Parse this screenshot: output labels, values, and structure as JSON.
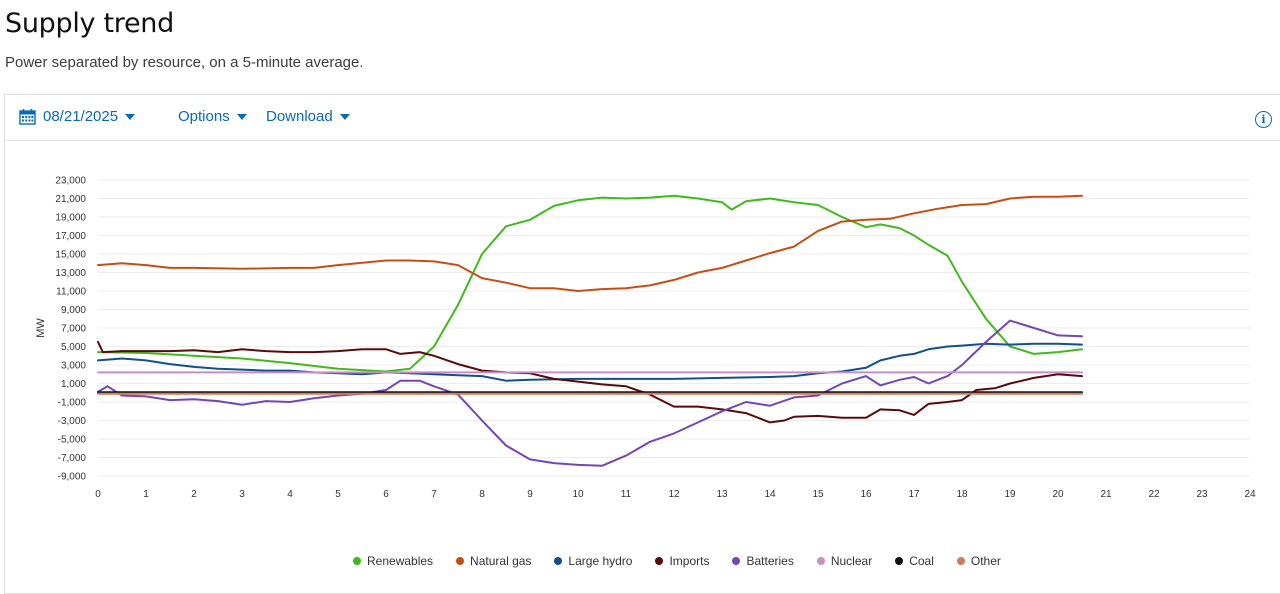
{
  "header": {
    "title": "Supply trend",
    "subtitle": "Power separated by resource, on a 5-minute average."
  },
  "toolbar": {
    "date": "08/21/2025",
    "options_label": "Options",
    "download_label": "Download",
    "info_glyph": "i"
  },
  "colors": {
    "accent": "#0a6bb5",
    "Renewables": "#41b91c",
    "Natural gas": "#c54e14",
    "Large hydro": "#124f8c",
    "Imports": "#5a0a0a",
    "Batteries": "#7247b5",
    "Nuclear": "#c88ec8",
    "Coal": "#111111",
    "Other": "#d17a5c"
  },
  "chart_data": {
    "type": "line",
    "ylabel": "MW",
    "xlabel": "",
    "xlim": [
      0,
      24
    ],
    "ylim": [
      -9000,
      23000
    ],
    "xticks": [
      0,
      1,
      2,
      3,
      4,
      5,
      6,
      7,
      8,
      9,
      10,
      11,
      12,
      13,
      14,
      15,
      16,
      17,
      18,
      19,
      20,
      21,
      22,
      23,
      24
    ],
    "yticks": [
      -9000,
      -7000,
      -5000,
      -3000,
      -1000,
      1000,
      3000,
      5000,
      7000,
      9000,
      11000,
      13000,
      15000,
      17000,
      19000,
      21000,
      23000
    ],
    "grid": "horizontal",
    "legend": "bottom-center",
    "series": [
      {
        "name": "Renewables",
        "points": [
          [
            0,
            4400
          ],
          [
            1,
            4300
          ],
          [
            2,
            4000
          ],
          [
            3,
            3700
          ],
          [
            4,
            3200
          ],
          [
            5,
            2600
          ],
          [
            6,
            2300
          ],
          [
            6.5,
            2600
          ],
          [
            7,
            5000
          ],
          [
            7.5,
            9500
          ],
          [
            8,
            15000
          ],
          [
            8.5,
            18000
          ],
          [
            9,
            18700
          ],
          [
            9.5,
            20200
          ],
          [
            10,
            20800
          ],
          [
            10.5,
            21100
          ],
          [
            11,
            21000
          ],
          [
            11.5,
            21100
          ],
          [
            12,
            21300
          ],
          [
            12.5,
            21000
          ],
          [
            13,
            20600
          ],
          [
            13.2,
            19800
          ],
          [
            13.5,
            20700
          ],
          [
            14,
            21000
          ],
          [
            14.5,
            20600
          ],
          [
            15,
            20300
          ],
          [
            15.5,
            19000
          ],
          [
            16,
            17900
          ],
          [
            16.3,
            18200
          ],
          [
            16.7,
            17800
          ],
          [
            17,
            17000
          ],
          [
            17.3,
            16000
          ],
          [
            17.7,
            14800
          ],
          [
            18,
            12000
          ],
          [
            18.5,
            8000
          ],
          [
            19,
            5000
          ],
          [
            19.5,
            4200
          ],
          [
            20,
            4400
          ],
          [
            20.5,
            4700
          ]
        ]
      },
      {
        "name": "Natural gas",
        "points": [
          [
            0,
            13800
          ],
          [
            0.5,
            14000
          ],
          [
            1,
            13800
          ],
          [
            1.5,
            13500
          ],
          [
            2,
            13500
          ],
          [
            3,
            13400
          ],
          [
            4,
            13500
          ],
          [
            4.5,
            13500
          ],
          [
            5,
            13800
          ],
          [
            6,
            14300
          ],
          [
            6.5,
            14300
          ],
          [
            7,
            14200
          ],
          [
            7.5,
            13800
          ],
          [
            8,
            12400
          ],
          [
            8.5,
            11900
          ],
          [
            9,
            11300
          ],
          [
            9.5,
            11300
          ],
          [
            10,
            11000
          ],
          [
            10.5,
            11200
          ],
          [
            11,
            11300
          ],
          [
            11.5,
            11600
          ],
          [
            12,
            12200
          ],
          [
            12.5,
            13000
          ],
          [
            13,
            13500
          ],
          [
            13.5,
            14300
          ],
          [
            14,
            15100
          ],
          [
            14.5,
            15800
          ],
          [
            15,
            17500
          ],
          [
            15.5,
            18500
          ],
          [
            16,
            18700
          ],
          [
            16.5,
            18800
          ],
          [
            17,
            19400
          ],
          [
            17.5,
            19900
          ],
          [
            18,
            20300
          ],
          [
            18.5,
            20400
          ],
          [
            19,
            21000
          ],
          [
            19.5,
            21200
          ],
          [
            20,
            21200
          ],
          [
            20.5,
            21300
          ]
        ]
      },
      {
        "name": "Large hydro",
        "points": [
          [
            0,
            3500
          ],
          [
            0.5,
            3700
          ],
          [
            1,
            3500
          ],
          [
            1.5,
            3100
          ],
          [
            2,
            2800
          ],
          [
            2.5,
            2600
          ],
          [
            3,
            2500
          ],
          [
            3.5,
            2400
          ],
          [
            4,
            2400
          ],
          [
            4.5,
            2200
          ],
          [
            5,
            2100
          ],
          [
            5.5,
            2000
          ],
          [
            6,
            2200
          ],
          [
            6.5,
            2100
          ],
          [
            7,
            2000
          ],
          [
            7.5,
            1900
          ],
          [
            8,
            1800
          ],
          [
            8.5,
            1300
          ],
          [
            9,
            1400
          ],
          [
            10,
            1500
          ],
          [
            11,
            1500
          ],
          [
            12,
            1500
          ],
          [
            13,
            1600
          ],
          [
            14,
            1700
          ],
          [
            14.5,
            1800
          ],
          [
            15,
            2100
          ],
          [
            15.5,
            2300
          ],
          [
            16,
            2700
          ],
          [
            16.3,
            3500
          ],
          [
            16.7,
            4000
          ],
          [
            17,
            4200
          ],
          [
            17.3,
            4700
          ],
          [
            17.7,
            5000
          ],
          [
            18,
            5100
          ],
          [
            18.5,
            5300
          ],
          [
            19,
            5200
          ],
          [
            19.5,
            5300
          ],
          [
            20,
            5300
          ],
          [
            20.5,
            5200
          ]
        ]
      },
      {
        "name": "Imports",
        "points": [
          [
            0,
            5500
          ],
          [
            0.1,
            4400
          ],
          [
            0.5,
            4500
          ],
          [
            1,
            4500
          ],
          [
            1.5,
            4500
          ],
          [
            2,
            4600
          ],
          [
            2.5,
            4400
          ],
          [
            3,
            4700
          ],
          [
            3.5,
            4500
          ],
          [
            4,
            4400
          ],
          [
            4.5,
            4400
          ],
          [
            5,
            4500
          ],
          [
            5.5,
            4700
          ],
          [
            6,
            4700
          ],
          [
            6.3,
            4200
          ],
          [
            6.7,
            4400
          ],
          [
            7,
            4000
          ],
          [
            7.5,
            3100
          ],
          [
            8,
            2400
          ],
          [
            8.5,
            2200
          ],
          [
            9,
            2100
          ],
          [
            9.5,
            1500
          ],
          [
            10,
            1200
          ],
          [
            10.5,
            900
          ],
          [
            11,
            700
          ],
          [
            11.5,
            -200
          ],
          [
            12,
            -1500
          ],
          [
            12.5,
            -1500
          ],
          [
            13,
            -1800
          ],
          [
            13.5,
            -2200
          ],
          [
            14,
            -3200
          ],
          [
            14.3,
            -3000
          ],
          [
            14.5,
            -2600
          ],
          [
            15,
            -2500
          ],
          [
            15.5,
            -2700
          ],
          [
            16,
            -2700
          ],
          [
            16.3,
            -1800
          ],
          [
            16.7,
            -1900
          ],
          [
            17,
            -2400
          ],
          [
            17.3,
            -1200
          ],
          [
            17.7,
            -1000
          ],
          [
            18,
            -800
          ],
          [
            18.3,
            300
          ],
          [
            18.7,
            500
          ],
          [
            19,
            1000
          ],
          [
            19.5,
            1600
          ],
          [
            20,
            2000
          ],
          [
            20.5,
            1800
          ]
        ]
      },
      {
        "name": "Batteries",
        "points": [
          [
            0,
            100
          ],
          [
            0.2,
            700
          ],
          [
            0.5,
            -300
          ],
          [
            1,
            -400
          ],
          [
            1.5,
            -800
          ],
          [
            2,
            -700
          ],
          [
            2.5,
            -900
          ],
          [
            3,
            -1300
          ],
          [
            3.5,
            -900
          ],
          [
            4,
            -1000
          ],
          [
            4.5,
            -600
          ],
          [
            5,
            -300
          ],
          [
            5.5,
            -100
          ],
          [
            6,
            300
          ],
          [
            6.3,
            1300
          ],
          [
            6.7,
            1300
          ],
          [
            7,
            700
          ],
          [
            7.5,
            -200
          ],
          [
            8,
            -3000
          ],
          [
            8.5,
            -5700
          ],
          [
            9,
            -7200
          ],
          [
            9.5,
            -7600
          ],
          [
            10,
            -7800
          ],
          [
            10.5,
            -7900
          ],
          [
            11,
            -6800
          ],
          [
            11.5,
            -5300
          ],
          [
            12,
            -4400
          ],
          [
            12.5,
            -3200
          ],
          [
            13,
            -2000
          ],
          [
            13.5,
            -1000
          ],
          [
            14,
            -1400
          ],
          [
            14.5,
            -500
          ],
          [
            15,
            -300
          ],
          [
            15.5,
            1000
          ],
          [
            16,
            1800
          ],
          [
            16.3,
            800
          ],
          [
            16.7,
            1400
          ],
          [
            17,
            1700
          ],
          [
            17.3,
            1000
          ],
          [
            17.7,
            1800
          ],
          [
            18,
            3000
          ],
          [
            18.5,
            5500
          ],
          [
            19,
            7800
          ],
          [
            19.5,
            7000
          ],
          [
            20,
            6200
          ],
          [
            20.5,
            6100
          ]
        ]
      },
      {
        "name": "Nuclear",
        "points": [
          [
            0,
            2200
          ],
          [
            20.5,
            2200
          ]
        ]
      },
      {
        "name": "Coal",
        "points": [
          [
            0,
            50
          ],
          [
            20.5,
            50
          ]
        ]
      },
      {
        "name": "Other",
        "points": [
          [
            0,
            -100
          ],
          [
            20.5,
            -100
          ]
        ]
      }
    ]
  }
}
